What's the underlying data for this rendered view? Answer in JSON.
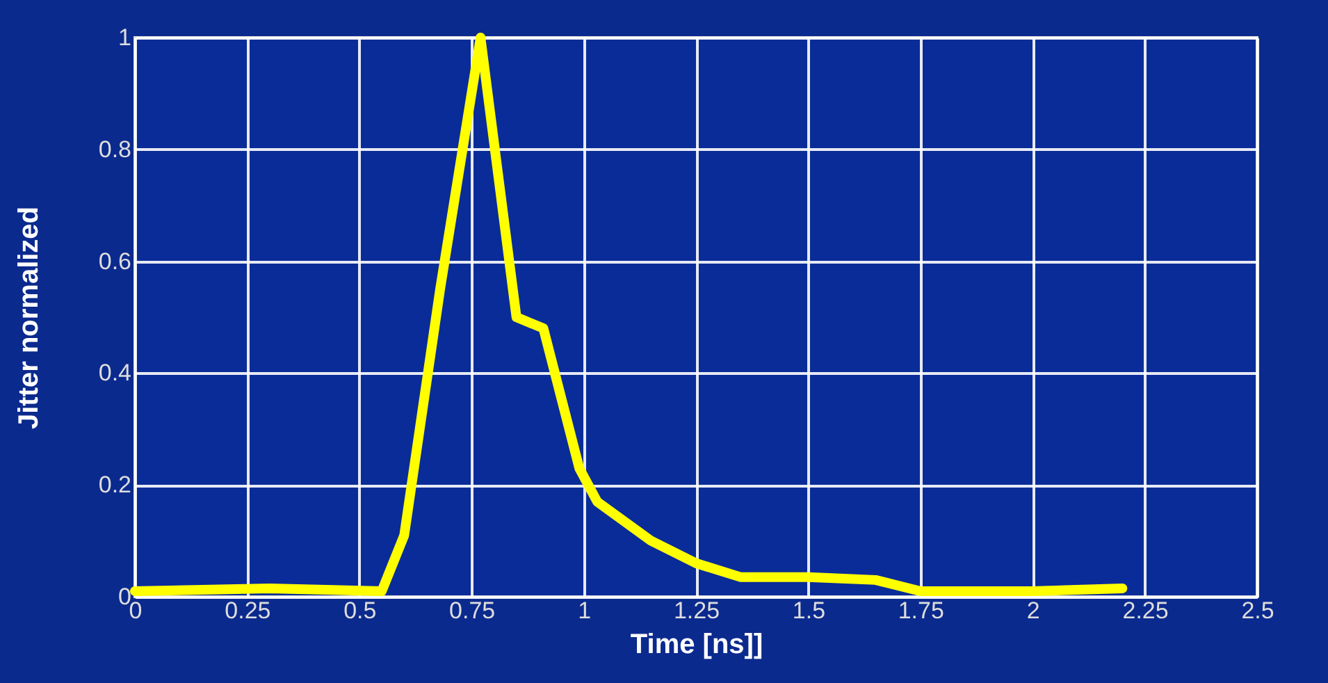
{
  "chart_data": {
    "type": "line",
    "xlabel": "Time [ns]]",
    "ylabel": "Jitter normalized",
    "x": [
      0,
      0.3,
      0.55,
      0.6,
      0.68,
      0.77,
      0.85,
      0.91,
      0.99,
      1.03,
      1.15,
      1.25,
      1.35,
      1.5,
      1.65,
      1.75,
      2.0,
      2.2
    ],
    "series": [
      {
        "color": "#ffff00",
        "values": [
          0.01,
          0.015,
          0.01,
          0.11,
          0.55,
          1.0,
          0.5,
          0.48,
          0.23,
          0.17,
          0.1,
          0.06,
          0.035,
          0.035,
          0.03,
          0.01,
          0.01,
          0.015
        ]
      }
    ],
    "xlim": [
      0,
      2.5
    ],
    "xticks": [
      0,
      0.25,
      0.5,
      0.75,
      1,
      1.25,
      1.5,
      1.75,
      2,
      2.25,
      2.5
    ],
    "ylim": [
      0,
      1
    ],
    "yticks": [
      0,
      0.2,
      0.4,
      0.6,
      0.8,
      1
    ],
    "grid": true,
    "marker": "none",
    "line_style": "solid"
  }
}
